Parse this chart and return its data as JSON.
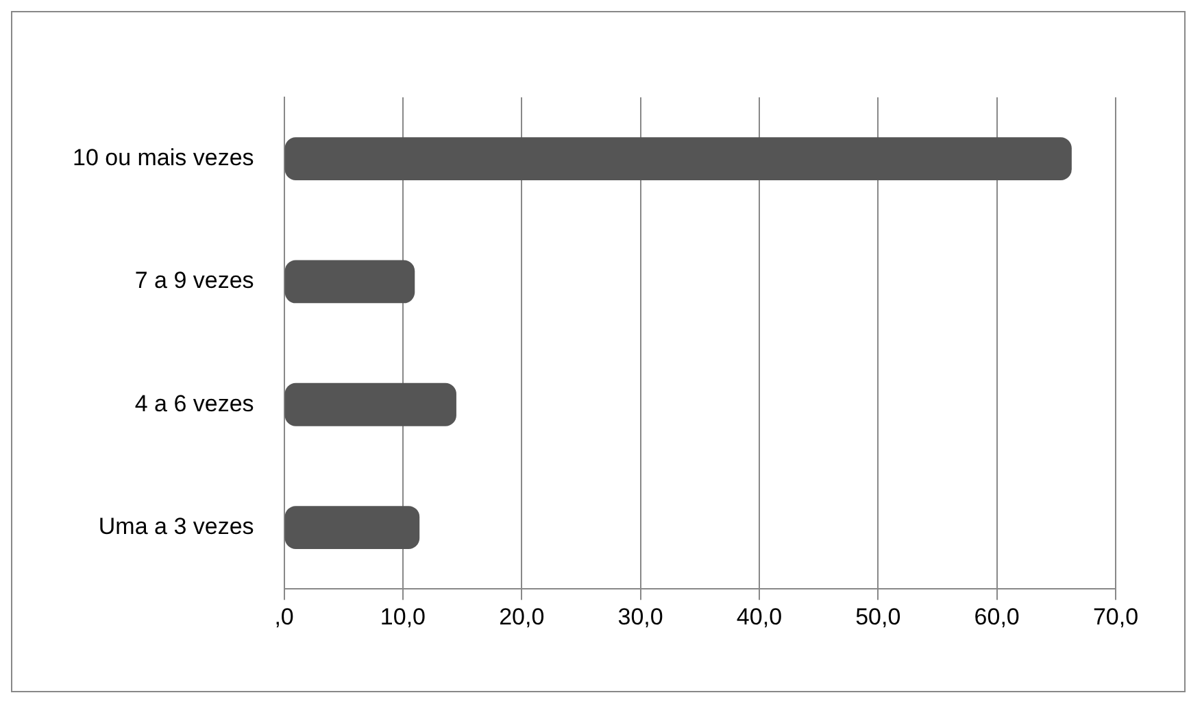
{
  "chart_data": {
    "type": "bar",
    "orientation": "horizontal",
    "categories": [
      "10 ou mais vezes",
      "7 a 9 vezes",
      "4 a 6 vezes",
      "Uma a 3 vezes"
    ],
    "values": [
      66.3,
      11.0,
      14.5,
      11.4
    ],
    "color": "#555555",
    "xlim": [
      0,
      70
    ],
    "xticks": [
      {
        "value": 0,
        "label": ",0"
      },
      {
        "value": 10,
        "label": "10,0"
      },
      {
        "value": 20,
        "label": "20,0"
      },
      {
        "value": 30,
        "label": "30,0"
      },
      {
        "value": 40,
        "label": "40,0"
      },
      {
        "value": 50,
        "label": "50,0"
      },
      {
        "value": 60,
        "label": "60,0"
      },
      {
        "value": 70,
        "label": "70,0"
      }
    ],
    "grid": "x",
    "legend": false
  }
}
